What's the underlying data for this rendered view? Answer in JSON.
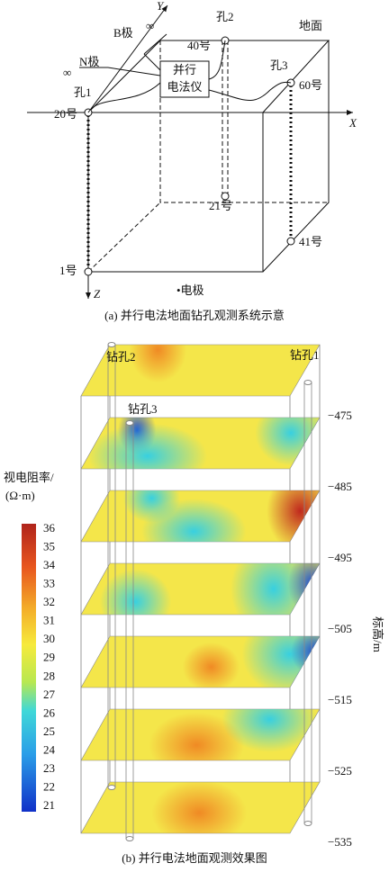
{
  "figure_a": {
    "labels": {
      "y_axis": "Y",
      "b_pole": "B极",
      "b_inf": "∞",
      "n_pole": "N极",
      "n_inf": "∞",
      "hole2": "孔2",
      "electrode40": "40号",
      "ground": "地面",
      "instrument_line1": "并行",
      "instrument_line2": "电法仪",
      "hole3": "孔3",
      "electrode60": "60号",
      "hole1": "孔1",
      "electrode20": "20号",
      "x_axis": "X",
      "electrode21": "21号",
      "electrode41": "41号",
      "electrode1": "1号",
      "z_axis": "Z",
      "electrode_legend": "•电极"
    },
    "caption": "(a) 并行电法地面钻孔观测系统示意"
  },
  "figure_b": {
    "borehole_labels": [
      "钻孔2",
      "钻孔1",
      "钻孔3"
    ],
    "colorbar": {
      "title_line1": "视电阻率/",
      "title_line2": "(Ω·m)",
      "ticks": [
        36,
        35,
        34,
        33,
        32,
        31,
        30,
        29,
        28,
        27,
        26,
        25,
        24,
        23,
        22,
        21
      ]
    },
    "elevation_axis": {
      "label": "标高/m",
      "ticks": [
        "−475",
        "−485",
        "−495",
        "−505",
        "−515",
        "−525",
        "−535"
      ]
    },
    "caption": "(b) 并行电法地面观测效果图"
  }
}
